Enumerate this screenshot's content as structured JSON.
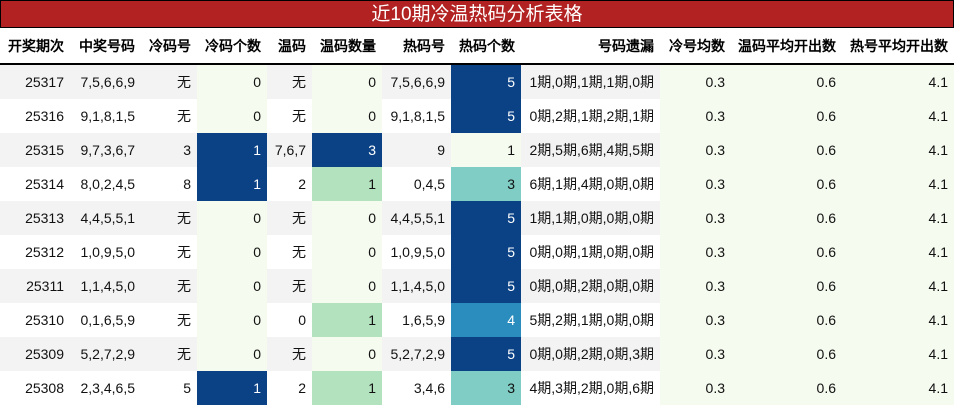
{
  "title": "近10期冷温热码分析表格",
  "headers": [
    "开奖期次",
    "中奖号码",
    "冷码号",
    "冷码个数",
    "温码",
    "温码数量",
    "热码号",
    "热码个数",
    "号码遗漏",
    "冷号均数",
    "温码平均开出数",
    "热号平均开出数"
  ],
  "rows": [
    [
      "25317",
      "7,5,6,6,9",
      "无",
      "0",
      "无",
      "0",
      "7,5,6,6,9",
      "5",
      "1期,0期,1期,1期,0期",
      "0.3",
      "0.6",
      "4.1"
    ],
    [
      "25316",
      "9,1,8,1,5",
      "无",
      "0",
      "无",
      "0",
      "9,1,8,1,5",
      "5",
      "0期,2期,1期,2期,1期",
      "0.3",
      "0.6",
      "4.1"
    ],
    [
      "25315",
      "9,7,3,6,7",
      "3",
      "1",
      "7,6,7",
      "3",
      "9",
      "1",
      "2期,5期,6期,4期,5期",
      "0.3",
      "0.6",
      "4.1"
    ],
    [
      "25314",
      "8,0,2,4,5",
      "8",
      "1",
      "2",
      "1",
      "0,4,5",
      "3",
      "6期,1期,4期,0期,0期",
      "0.3",
      "0.6",
      "4.1"
    ],
    [
      "25313",
      "4,4,5,5,1",
      "无",
      "0",
      "无",
      "0",
      "4,4,5,5,1",
      "5",
      "1期,1期,0期,0期,0期",
      "0.3",
      "0.6",
      "4.1"
    ],
    [
      "25312",
      "1,0,9,5,0",
      "无",
      "0",
      "无",
      "0",
      "1,0,9,5,0",
      "5",
      "0期,0期,1期,0期,0期",
      "0.3",
      "0.6",
      "4.1"
    ],
    [
      "25311",
      "1,1,4,5,0",
      "无",
      "0",
      "无",
      "0",
      "1,1,4,5,0",
      "5",
      "0期,0期,2期,0期,0期",
      "0.3",
      "0.6",
      "4.1"
    ],
    [
      "25310",
      "0,1,6,5,9",
      "无",
      "0",
      "0",
      "1",
      "1,6,5,9",
      "4",
      "5期,2期,1期,0期,0期",
      "0.3",
      "0.6",
      "4.1"
    ],
    [
      "25309",
      "5,2,7,2,9",
      "无",
      "0",
      "无",
      "0",
      "5,2,7,2,9",
      "5",
      "0期,0期,2期,0期,3期",
      "0.3",
      "0.6",
      "4.1"
    ],
    [
      "25308",
      "2,3,4,6,5",
      "5",
      "1",
      "2",
      "1",
      "3,4,6",
      "3",
      "4期,3期,2期,0期,6期",
      "0.3",
      "0.6",
      "4.1"
    ]
  ],
  "colors": {
    "title_bg": "#b22222",
    "dark": "#0b4285",
    "mid": "#2b8cbe",
    "teal": "#7fcdc4",
    "light_green": "#b3e2bf",
    "pale": "#f5fbef"
  }
}
